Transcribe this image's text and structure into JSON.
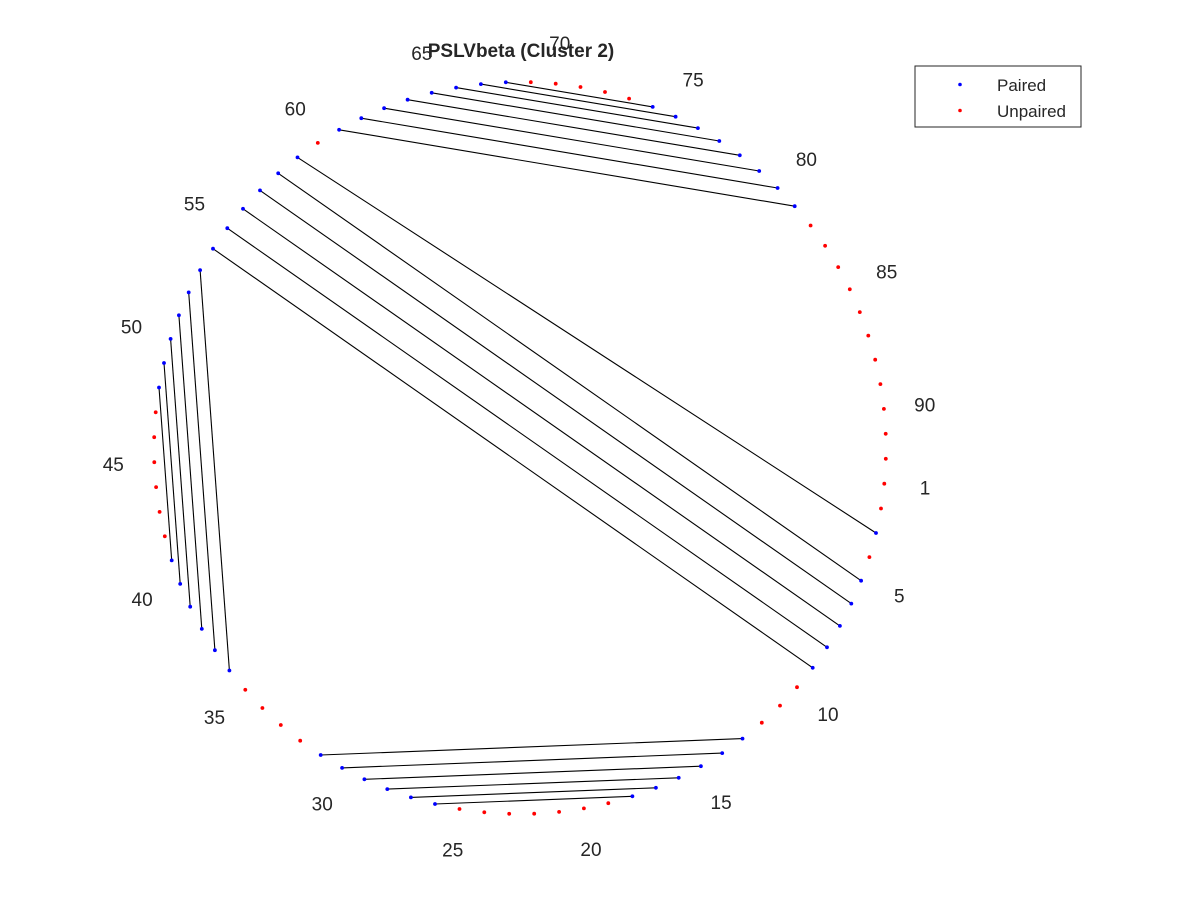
{
  "chart_data": {
    "type": "arc_diagram_circular",
    "title": "PSLVbeta (Cluster 2)",
    "sequence_length": 92,
    "position_labels": [
      "1",
      "5",
      "10",
      "15",
      "20",
      "25",
      "30",
      "35",
      "40",
      "45",
      "50",
      "55",
      "60",
      "65",
      "70",
      "75",
      "80",
      "85",
      "90"
    ],
    "pairs": [
      [
        3,
        59
      ],
      [
        5,
        58
      ],
      [
        6,
        57
      ],
      [
        7,
        56
      ],
      [
        8,
        55
      ],
      [
        9,
        54
      ],
      [
        13,
        31
      ],
      [
        14,
        30
      ],
      [
        15,
        29
      ],
      [
        16,
        28
      ],
      [
        17,
        27
      ],
      [
        18,
        26
      ],
      [
        36,
        53
      ],
      [
        37,
        52
      ],
      [
        38,
        51
      ],
      [
        39,
        50
      ],
      [
        40,
        49
      ],
      [
        41,
        48
      ],
      [
        61,
        81
      ],
      [
        62,
        80
      ],
      [
        63,
        79
      ],
      [
        64,
        78
      ],
      [
        65,
        77
      ],
      [
        66,
        76
      ],
      [
        67,
        75
      ],
      [
        68,
        74
      ]
    ],
    "legend": {
      "placement": "top-right",
      "entries": [
        {
          "label": "Paired",
          "color": "#0000ff"
        },
        {
          "label": "Unpaired",
          "color": "#ff0000"
        }
      ]
    },
    "grid": false
  },
  "colors": {
    "paired": "#0000ff",
    "unpaired": "#ff0000",
    "pair_line": "#000000",
    "text": "#262626"
  }
}
